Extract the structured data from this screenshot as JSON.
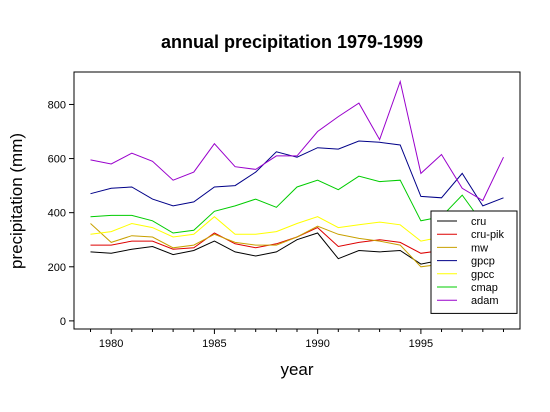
{
  "chart_data": {
    "type": "line",
    "title": "annual precipitation 1979-1999",
    "xlabel": "year",
    "ylabel": "precipitation (mm)",
    "xlim": [
      1978.2,
      1999.8
    ],
    "ylim": [
      -30,
      920
    ],
    "xticks": [
      1980,
      1985,
      1990,
      1995
    ],
    "yticks": [
      0,
      200,
      400,
      600,
      800
    ],
    "grid": false,
    "legend_position": "bottom-right",
    "x": [
      1979,
      1980,
      1981,
      1982,
      1983,
      1984,
      1985,
      1986,
      1987,
      1988,
      1989,
      1990,
      1991,
      1992,
      1993,
      1994,
      1995,
      1996,
      1997,
      1998,
      1999
    ],
    "series": [
      {
        "name": "cru",
        "color": "#000000",
        "values": [
          255,
          250,
          265,
          275,
          245,
          260,
          295,
          255,
          240,
          255,
          300,
          325,
          230,
          260,
          255,
          260,
          210,
          225,
          null,
          null,
          null
        ]
      },
      {
        "name": "cru-pik",
        "color": "#dd0000",
        "values": [
          280,
          280,
          295,
          295,
          265,
          270,
          325,
          285,
          270,
          285,
          310,
          345,
          275,
          290,
          300,
          290,
          250,
          260,
          null,
          null,
          null
        ]
      },
      {
        "name": "mw",
        "color": "#c8a000",
        "values": [
          360,
          290,
          315,
          310,
          270,
          280,
          320,
          290,
          280,
          280,
          310,
          350,
          320,
          305,
          295,
          280,
          200,
          210,
          null,
          null,
          null
        ]
      },
      {
        "name": "gpcp",
        "color": "#000088",
        "values": [
          470,
          490,
          495,
          450,
          425,
          440,
          495,
          500,
          550,
          625,
          605,
          640,
          635,
          665,
          660,
          650,
          460,
          455,
          545,
          425,
          455
        ]
      },
      {
        "name": "gpcc",
        "color": "#ffff00",
        "values": [
          320,
          330,
          360,
          345,
          310,
          320,
          385,
          320,
          320,
          330,
          360,
          385,
          345,
          355,
          365,
          355,
          295,
          310,
          null,
          null,
          null
        ]
      },
      {
        "name": "cmap",
        "color": "#00cc00",
        "values": [
          385,
          390,
          390,
          370,
          325,
          335,
          405,
          425,
          450,
          420,
          495,
          520,
          485,
          535,
          515,
          520,
          370,
          385,
          465,
          360,
          null
        ]
      },
      {
        "name": "adam",
        "color": "#9900cc",
        "values": [
          595,
          580,
          620,
          590,
          520,
          550,
          655,
          570,
          560,
          610,
          610,
          700,
          755,
          805,
          670,
          885,
          545,
          615,
          490,
          445,
          605
        ]
      }
    ]
  }
}
